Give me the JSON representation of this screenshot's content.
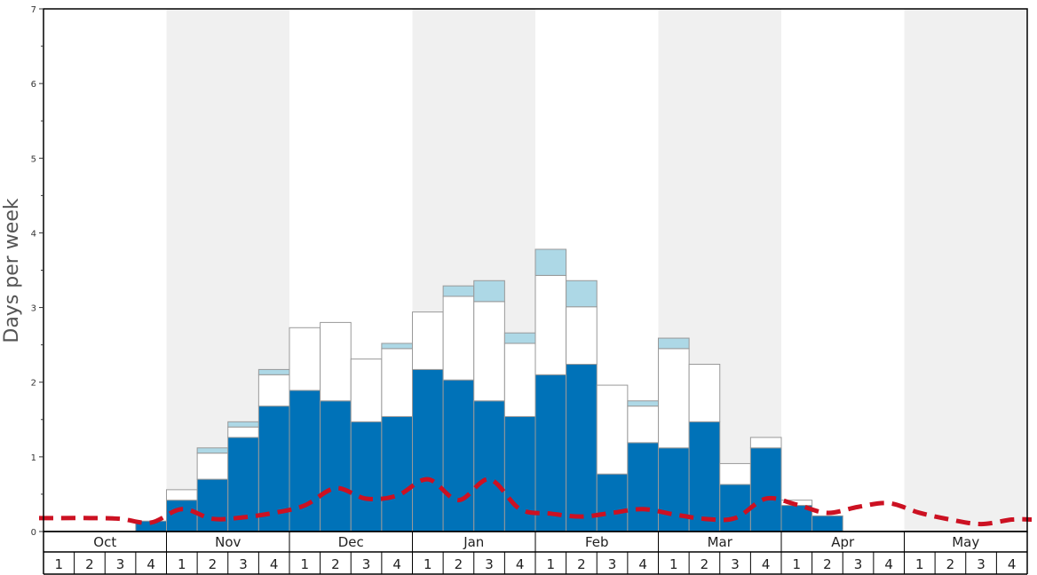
{
  "chart_data": {
    "type": "bar",
    "title": "",
    "xlabel": "",
    "ylabel": "Days per week",
    "ylim": [
      0,
      7
    ],
    "yticks": [
      "0",
      "1",
      "2",
      "3",
      "4",
      "5",
      "6",
      "7"
    ],
    "months": [
      "Oct",
      "Nov",
      "Dec",
      "Jan",
      "Feb",
      "Mar",
      "Apr",
      "May"
    ],
    "week_labels": [
      "1",
      "2",
      "3",
      "4"
    ],
    "grid": false,
    "alternating_month_shading": true,
    "stacked": true,
    "series": [
      {
        "color": "#0072b8",
        "values": [
          0,
          0,
          0,
          0.14,
          0.42,
          0.7,
          1.26,
          1.68,
          1.89,
          1.75,
          1.47,
          1.54,
          2.17,
          2.03,
          1.75,
          1.54,
          2.1,
          2.24,
          0.77,
          1.19,
          1.12,
          1.47,
          0.63,
          1.12,
          0.35,
          0.21,
          0,
          0,
          0,
          0,
          0,
          0
        ]
      },
      {
        "color": "#ffffff",
        "values": [
          0,
          0,
          0,
          0,
          0.14,
          0.35,
          0.14,
          0.42,
          0.84,
          1.05,
          0.84,
          0.91,
          0.77,
          1.12,
          1.33,
          0.98,
          1.33,
          0.77,
          1.19,
          0.49,
          1.33,
          0.77,
          0.28,
          0.14,
          0.07,
          0,
          0,
          0,
          0,
          0,
          0,
          0
        ]
      },
      {
        "color": "#add8e6",
        "values": [
          0,
          0,
          0,
          0,
          0,
          0.07,
          0.07,
          0.07,
          0,
          0,
          0,
          0.07,
          0,
          0.14,
          0.28,
          0.14,
          0.35,
          0.35,
          0,
          0.07,
          0.14,
          0,
          0,
          0,
          0,
          0,
          0,
          0,
          0,
          0,
          0,
          0
        ]
      }
    ],
    "dashed_line": {
      "color": "#cc1122",
      "values": [
        0.18,
        0.18,
        0.17,
        0.12,
        0.3,
        0.17,
        0.19,
        0.25,
        0.35,
        0.58,
        0.44,
        0.48,
        0.7,
        0.42,
        0.7,
        0.3,
        0.24,
        0.2,
        0.25,
        0.3,
        0.23,
        0.17,
        0.18,
        0.44,
        0.36,
        0.25,
        0.33,
        0.38,
        0.25,
        0.16,
        0.1,
        0.16
      ]
    }
  }
}
